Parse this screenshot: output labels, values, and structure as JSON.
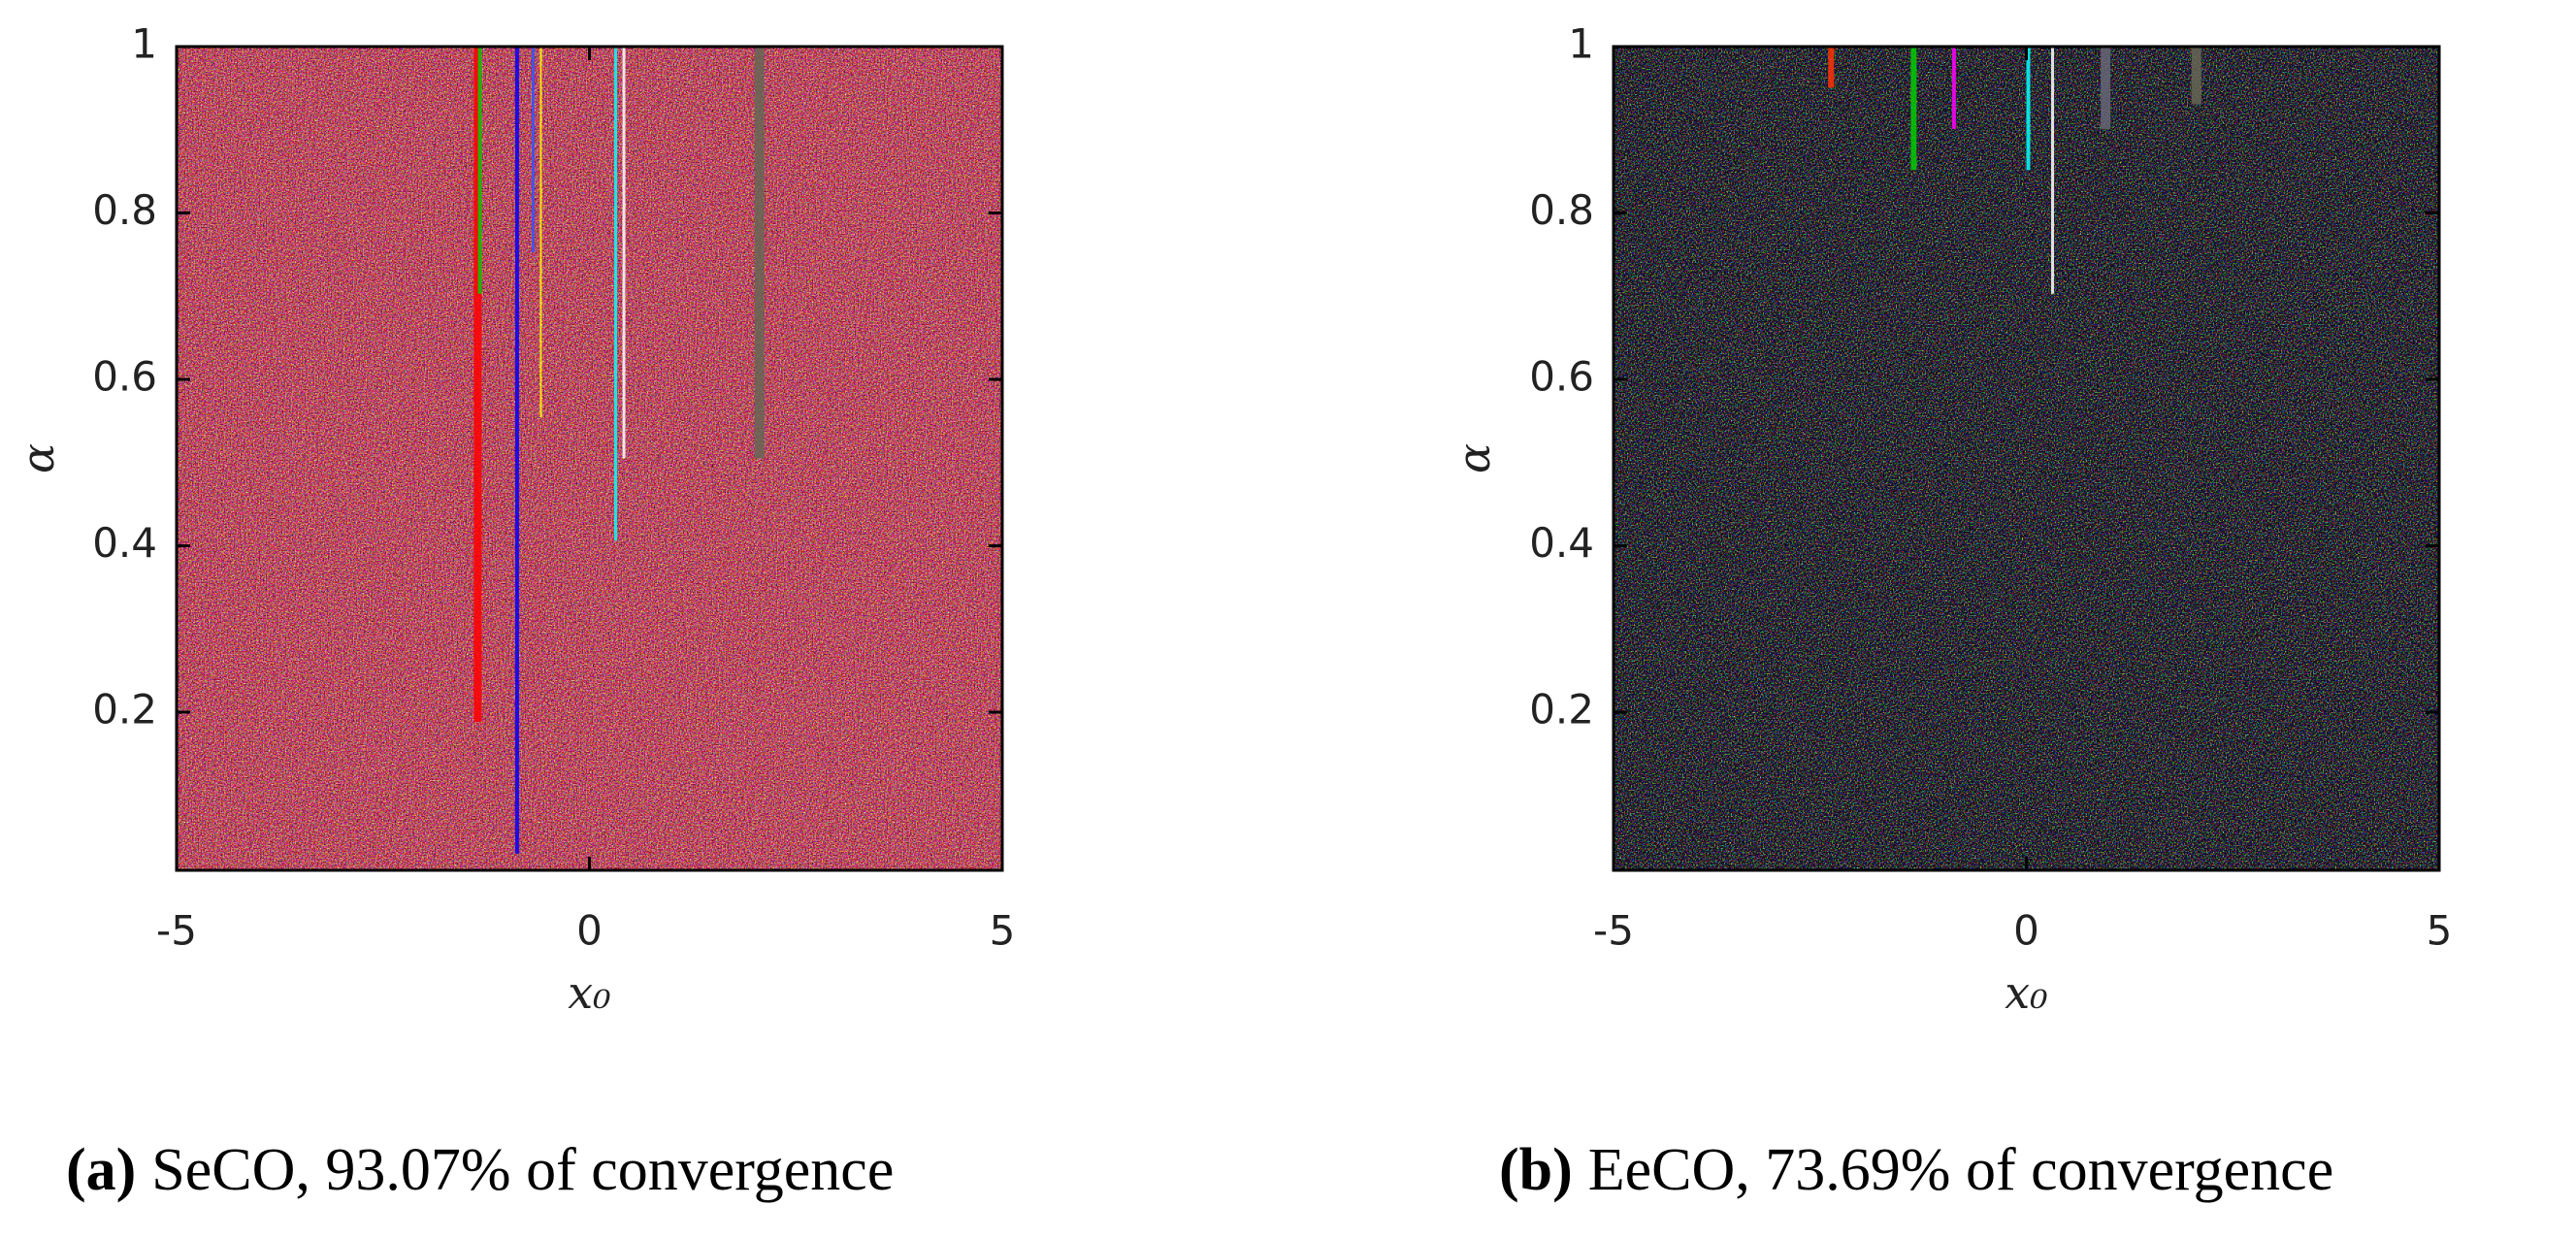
{
  "chart_data": [
    {
      "type": "heatmap",
      "caption_label": "(a)",
      "caption": "SeCO, 93.07% of convergence",
      "xlabel": "x₀",
      "ylabel": "α",
      "xlim": [
        -5,
        5
      ],
      "xticks": [
        -5,
        0,
        5
      ],
      "ylim": [
        0.01,
        1
      ],
      "yticks": [
        0.2,
        0.4,
        0.6,
        0.8,
        1
      ]
    },
    {
      "type": "heatmap",
      "caption_label": "(b)",
      "caption": "EeCO, 73.69% of convergence",
      "xlabel": "x₀",
      "ylabel": "α",
      "xlim": [
        -5,
        5
      ],
      "xticks": [
        -5,
        0,
        5
      ],
      "ylim": [
        0.01,
        1
      ],
      "yticks": [
        0.2,
        0.4,
        0.6,
        0.8,
        1
      ]
    }
  ]
}
